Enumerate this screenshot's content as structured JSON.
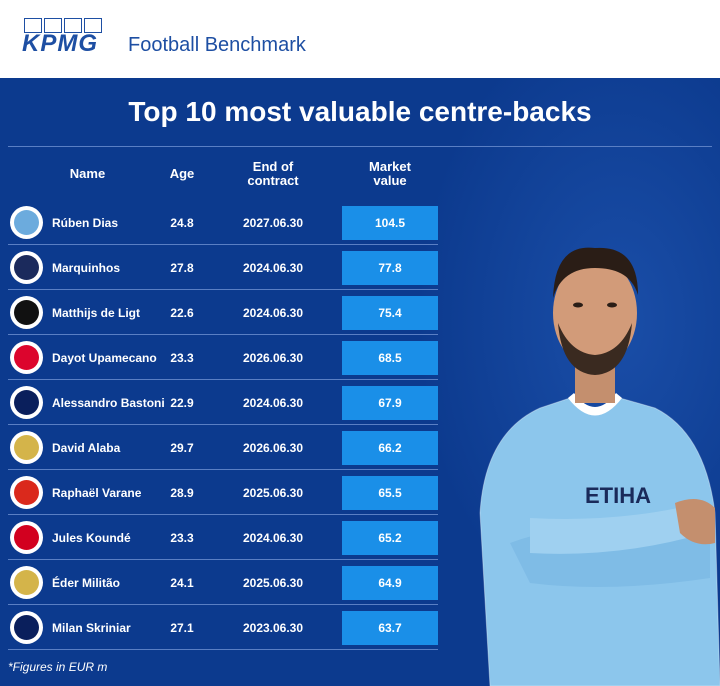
{
  "header": {
    "logo_text": "KPMG",
    "brand": "Football Benchmark"
  },
  "title": "Top 10 most valuable centre-backs",
  "columns": {
    "name": "Name",
    "age": "Age",
    "contract_1": "End of",
    "contract_2": "contract",
    "value_1": "Market",
    "value_2": "value"
  },
  "rows": [
    {
      "name": "Rúben Dias",
      "age": "24.8",
      "contract": "2027.06.30",
      "value": "104.5",
      "crest": "manchester-city-crest",
      "color": "#6cabdd"
    },
    {
      "name": "Marquinhos",
      "age": "27.8",
      "contract": "2024.06.30",
      "value": "77.8",
      "crest": "psg-crest",
      "color": "#1b2a5c"
    },
    {
      "name": "Matthijs de Ligt",
      "age": "22.6",
      "contract": "2024.06.30",
      "value": "75.4",
      "crest": "juventus-crest",
      "color": "#111111"
    },
    {
      "name": "Dayot Upamecano",
      "age": "23.3",
      "contract": "2026.06.30",
      "value": "68.5",
      "crest": "bayern-crest",
      "color": "#dc052d"
    },
    {
      "name": "Alessandro Bastoni",
      "age": "22.9",
      "contract": "2024.06.30",
      "value": "67.9",
      "crest": "inter-crest",
      "color": "#0a1f5c"
    },
    {
      "name": "David Alaba",
      "age": "29.7",
      "contract": "2026.06.30",
      "value": "66.2",
      "crest": "real-madrid-crest",
      "color": "#d4b44a"
    },
    {
      "name": "Raphaël Varane",
      "age": "28.9",
      "contract": "2025.06.30",
      "value": "65.5",
      "crest": "manchester-united-crest",
      "color": "#da291c"
    },
    {
      "name": "Jules Koundé",
      "age": "23.3",
      "contract": "2024.06.30",
      "value": "65.2",
      "crest": "sevilla-crest",
      "color": "#d2001f"
    },
    {
      "name": "Éder Militão",
      "age": "24.1",
      "contract": "2025.06.30",
      "value": "64.9",
      "crest": "real-madrid-crest",
      "color": "#d4b44a"
    },
    {
      "name": "Milan Skriniar",
      "age": "27.1",
      "contract": "2023.06.30",
      "value": "63.7",
      "crest": "inter-crest",
      "color": "#0a1f5c"
    }
  ],
  "footnote": "*Figures in EUR m",
  "colors": {
    "panel": "#0c3a8e",
    "value_box": "#1a8fe8",
    "kpmg_blue": "#1e4fa3"
  }
}
